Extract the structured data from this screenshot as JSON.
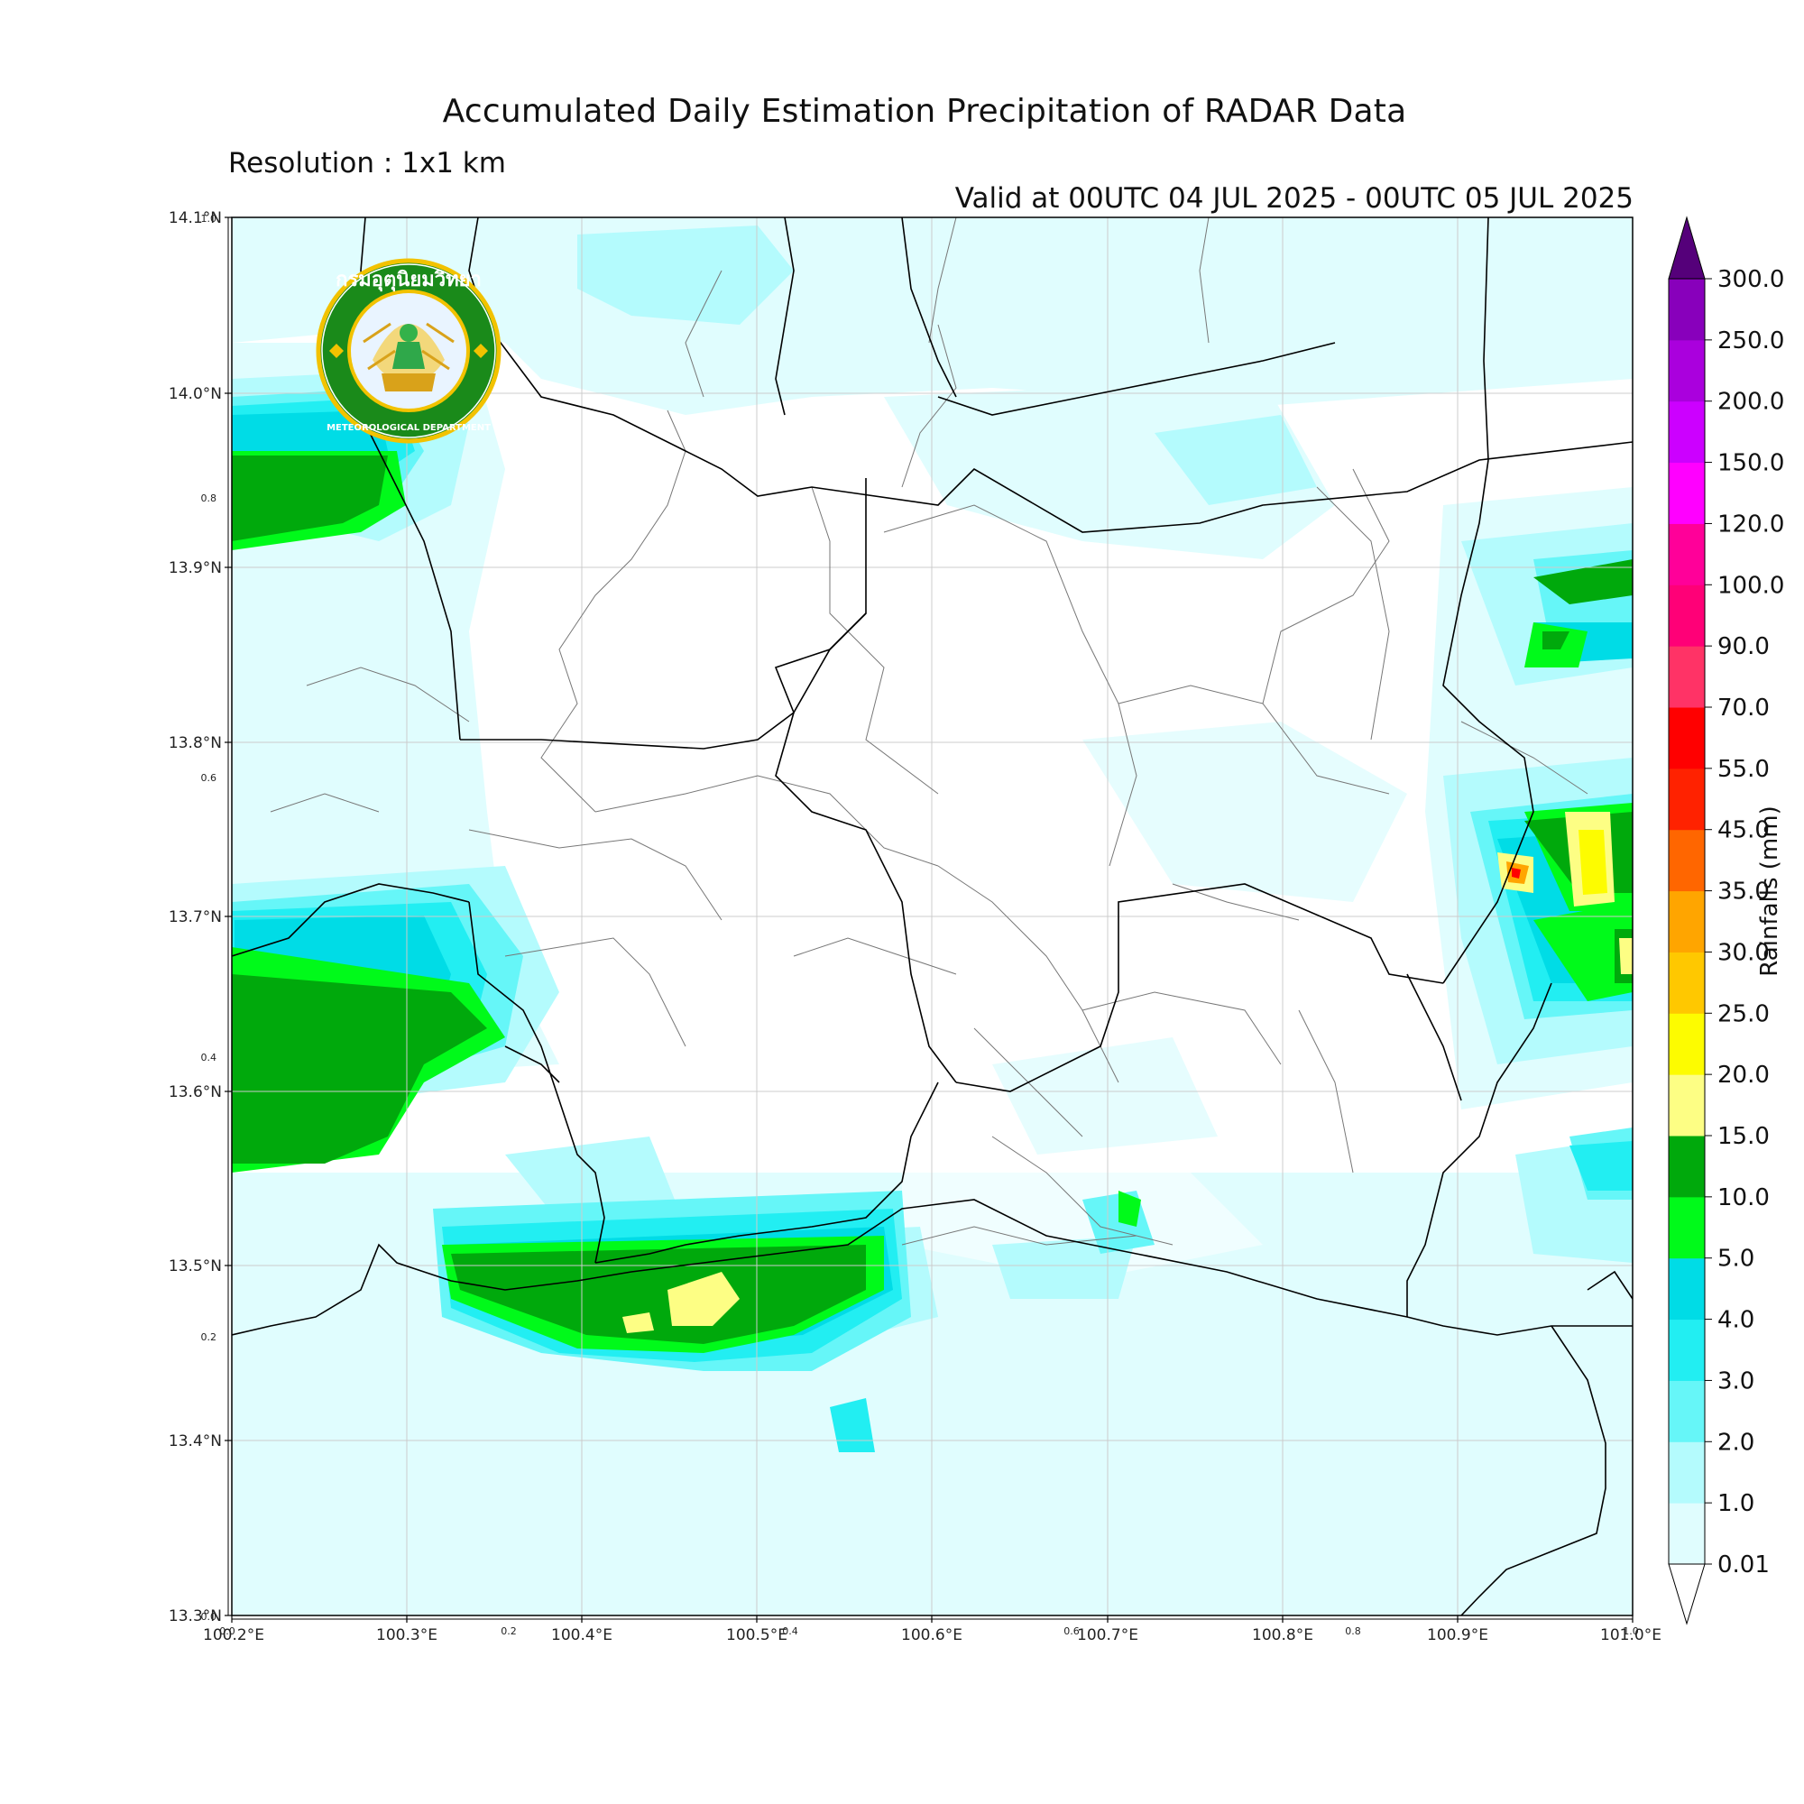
{
  "title": "Accumulated Daily Estimation Precipitation of RADAR Data",
  "resolution": "Resolution : 1x1 km",
  "valid": "Valid at 00UTC 04 JUL 2025 - 00UTC 05 JUL 2025",
  "logo": {
    "thai_text": "กรมอุตุนิยมวิทยา",
    "english_text": "METEOROLOGICAL DEPARTMENT",
    "icon": "tmd-seal-icon"
  },
  "map": {
    "lon_labels": [
      "100.2°E",
      "100.3°E",
      "100.4°E",
      "100.5°E",
      "100.6°E",
      "100.7°E",
      "100.8°E",
      "100.9°E",
      "101.0°E"
    ],
    "lat_labels": [
      "14.1°N",
      "14.0°N",
      "13.9°N",
      "13.8°N",
      "13.7°N",
      "13.6°N",
      "13.5°N",
      "13.4°N",
      "13.3°N"
    ],
    "frac_y_labels": [
      "1.0",
      "0.8",
      "0.6",
      "0.4",
      "0.2",
      "0.0"
    ],
    "frac_x_labels": [
      "0.0",
      "0.2",
      "0.4",
      "0.6",
      "0.8",
      "1.0"
    ],
    "grid": true
  },
  "colorbar": {
    "title": "Rainfalls (mm)",
    "levels": [
      "0.01",
      "1.0",
      "2.0",
      "3.0",
      "4.0",
      "5.0",
      "10.0",
      "15.0",
      "20.0",
      "25.0",
      "30.0",
      "35.0",
      "45.0",
      "55.0",
      "70.0",
      "90.0",
      "100.0",
      "120.0",
      "150.0",
      "200.0",
      "250.0",
      "300.0"
    ],
    "colors": [
      "#e0fdfe",
      "#b4fbfd",
      "#66f6f8",
      "#22eef2",
      "#00dce6",
      "#00fa1a",
      "#00a90c",
      "#fdfe84",
      "#fdfc00",
      "#ffc800",
      "#ffa500",
      "#ff6600",
      "#ff2200",
      "#ff0000",
      "#ff3366",
      "#ff0077",
      "#ff0099",
      "#ff00ff",
      "#cc00ff",
      "#aa00dd",
      "#8800bb"
    ],
    "extend_top_color": "#55007a",
    "extend_bottom_color": "#ffffff"
  }
}
